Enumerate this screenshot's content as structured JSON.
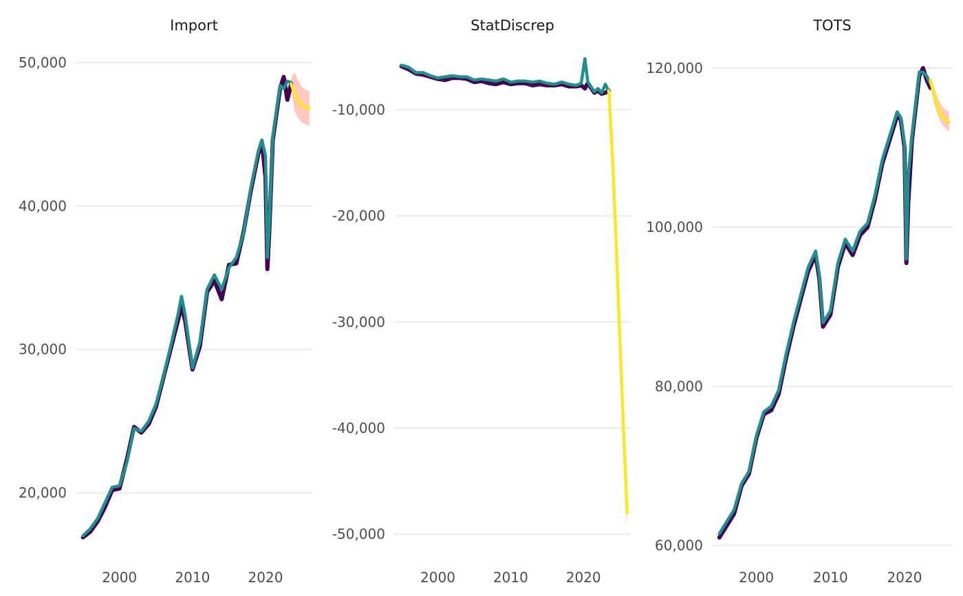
{
  "chart_data": [
    {
      "type": "line",
      "title": "Import",
      "xlabel": "",
      "ylabel": "",
      "xlim": [
        1994,
        2026.5
      ],
      "ylim": [
        15500,
        51000
      ],
      "x_ticks": [
        2000,
        2010,
        2020
      ],
      "x_tick_labels": [
        "2000",
        "2010",
        "2020"
      ],
      "y_ticks": [
        20000,
        30000,
        40000,
        50000
      ],
      "y_tick_labels": [
        "20,000",
        "30,000",
        "40,000",
        "50,000"
      ],
      "grid": true,
      "colors": {
        "actual": "#440154",
        "fitted": "#21908C",
        "forecast": "#FDE725",
        "interval": "#FF9A8A"
      },
      "series": [
        {
          "role": "actual",
          "x": [
            1995,
            1996,
            1997,
            1998,
            1999,
            2000,
            2001,
            2002,
            2003,
            2004,
            2005,
            2006,
            2007,
            2008,
            2008.5,
            2009,
            2010,
            2011,
            2012,
            2013,
            2014,
            2015,
            2016,
            2017,
            2018,
            2019,
            2019.5,
            2020,
            2020.25,
            2020.5,
            2021,
            2022,
            2022.5,
            2023,
            2023.5
          ],
          "values": [
            16900,
            17300,
            18000,
            19000,
            20200,
            20300,
            22300,
            24600,
            24200,
            24800,
            26000,
            28000,
            30000,
            32000,
            33000,
            32000,
            28600,
            30200,
            34000,
            34800,
            33500,
            35900,
            36000,
            38200,
            41100,
            43600,
            44500,
            42000,
            35600,
            38000,
            44600,
            48200,
            49000,
            47400,
            48500
          ]
        },
        {
          "role": "fitted",
          "x": [
            1995,
            1996,
            1997,
            1998,
            1999,
            2000,
            2001,
            2002,
            2003,
            2004,
            2005,
            2006,
            2007,
            2008,
            2008.5,
            2009,
            2010,
            2011,
            2012,
            2013,
            2014,
            2015,
            2016,
            2017,
            2018,
            2019,
            2019.5,
            2020,
            2020.25,
            2020.5,
            2021,
            2022,
            2022.5,
            2023,
            2023.5
          ],
          "values": [
            17000,
            17500,
            18200,
            19300,
            20400,
            20500,
            22100,
            24500,
            24300,
            25000,
            26200,
            28100,
            30200,
            32400,
            33700,
            32400,
            28700,
            30500,
            34200,
            35200,
            34200,
            35700,
            36400,
            38100,
            41300,
            43800,
            44600,
            43500,
            36400,
            38500,
            44800,
            48400,
            48200,
            48700,
            48600
          ]
        },
        {
          "role": "forecast",
          "x": [
            2023.5,
            2024,
            2024.5,
            2025,
            2025.5,
            2026
          ],
          "values": [
            48500,
            47800,
            47300,
            47000,
            46900,
            46800
          ]
        }
      ],
      "interval": {
        "x": [
          2023.5,
          2024,
          2024.5,
          2025,
          2025.5,
          2026
        ],
        "lower": [
          48100,
          46600,
          46100,
          45800,
          45700,
          45600
        ],
        "upper": [
          48900,
          49300,
          48700,
          48300,
          48100,
          48000
        ]
      }
    },
    {
      "type": "line",
      "title": "StatDiscrep",
      "xlabel": "",
      "ylabel": "",
      "xlim": [
        1994,
        2026.5
      ],
      "ylim": [
        -52200,
        -4200
      ],
      "x_ticks": [
        2000,
        2010,
        2020
      ],
      "x_tick_labels": [
        "2000",
        "2010",
        "2020"
      ],
      "y_ticks": [
        -50000,
        -40000,
        -30000,
        -20000,
        -10000
      ],
      "y_tick_labels": [
        "-50,000",
        "-40,000",
        "-30,000",
        "-20,000",
        "-10,000"
      ],
      "grid": true,
      "colors": {
        "actual": "#440154",
        "fitted": "#21908C",
        "forecast": "#FDE725",
        "interval": "#FF9A8A"
      },
      "series": [
        {
          "role": "actual",
          "x": [
            1995,
            1996,
            1997,
            1998,
            1999,
            2000,
            2001,
            2002,
            2003,
            2004,
            2005,
            2006,
            2007,
            2008,
            2009,
            2010,
            2011,
            2012,
            2013,
            2014,
            2015,
            2016,
            2017,
            2018,
            2019,
            2019.7,
            2020.2,
            2020.6,
            2021,
            2021.5,
            2022,
            2022.5,
            2023,
            2023.5
          ],
          "values": [
            -5900,
            -6200,
            -6600,
            -6700,
            -6900,
            -7100,
            -7200,
            -7000,
            -7000,
            -7100,
            -7400,
            -7300,
            -7500,
            -7600,
            -7400,
            -7600,
            -7500,
            -7500,
            -7700,
            -7600,
            -7700,
            -7700,
            -7600,
            -7800,
            -7800,
            -7700,
            -8000,
            -7500,
            -7900,
            -8400,
            -8200,
            -8500,
            -8400,
            -8200
          ]
        },
        {
          "role": "fitted",
          "x": [
            1995,
            1996,
            1997,
            1998,
            1999,
            2000,
            2001,
            2002,
            2003,
            2004,
            2005,
            2006,
            2007,
            2008,
            2009,
            2010,
            2011,
            2012,
            2013,
            2014,
            2015,
            2016,
            2017,
            2018,
            2019,
            2019.7,
            2020.2,
            2020.6,
            2021,
            2021.5,
            2022,
            2022.5,
            2023,
            2023.5
          ],
          "values": [
            -5800,
            -6000,
            -6500,
            -6500,
            -6800,
            -7000,
            -6900,
            -6800,
            -6900,
            -6900,
            -7200,
            -7100,
            -7200,
            -7300,
            -7100,
            -7400,
            -7300,
            -7300,
            -7400,
            -7300,
            -7500,
            -7600,
            -7400,
            -7600,
            -7700,
            -7500,
            -5200,
            -7400,
            -7800,
            -8300,
            -8000,
            -8400,
            -7600,
            -8300
          ]
        },
        {
          "role": "forecast",
          "x": [
            2023.5,
            2024,
            2024.5,
            2025,
            2025.5,
            2026
          ],
          "values": [
            -8200,
            -14500,
            -22500,
            -31500,
            -40000,
            -48000
          ]
        }
      ],
      "interval": {
        "x": [
          2025.9,
          2026
        ],
        "lower": [
          -48500,
          -49000
        ],
        "upper": [
          -47500,
          -47200
        ]
      }
    },
    {
      "type": "line",
      "title": "TOTS",
      "xlabel": "",
      "ylabel": "",
      "xlim": [
        1994,
        2026.5
      ],
      "ylim": [
        58500,
        122500
      ],
      "x_ticks": [
        2000,
        2010,
        2020
      ],
      "x_tick_labels": [
        "2000",
        "2010",
        "2020"
      ],
      "y_ticks": [
        60000,
        80000,
        100000,
        120000
      ],
      "y_tick_labels": [
        "60,000",
        "80,000",
        "100,000",
        "120,000"
      ],
      "grid": true,
      "colors": {
        "actual": "#440154",
        "fitted": "#21908C",
        "forecast": "#FDE725",
        "interval": "#FF9A8A"
      },
      "series": [
        {
          "role": "actual",
          "x": [
            1995,
            1996,
            1997,
            1998,
            1999,
            2000,
            2001,
            2002,
            2003,
            2004,
            2005,
            2006,
            2007,
            2008,
            2008.5,
            2009,
            2010,
            2011,
            2012,
            2013,
            2014,
            2015,
            2016,
            2017,
            2018,
            2019,
            2019.5,
            2020,
            2020.25,
            2020.5,
            2021,
            2022,
            2022.5,
            2023,
            2023.5
          ],
          "values": [
            61000,
            62500,
            64000,
            67500,
            69000,
            73500,
            76500,
            77000,
            79000,
            83500,
            87500,
            91000,
            94500,
            96500,
            93500,
            87500,
            89000,
            95000,
            98000,
            96500,
            99000,
            100000,
            103500,
            108000,
            111000,
            114000,
            113500,
            110000,
            95500,
            103000,
            111000,
            119000,
            120000,
            118500,
            117500
          ]
        },
        {
          "role": "fitted",
          "x": [
            1995,
            1996,
            1997,
            1998,
            1999,
            2000,
            2001,
            2002,
            2003,
            2004,
            2005,
            2006,
            2007,
            2008,
            2008.5,
            2009,
            2010,
            2011,
            2012,
            2013,
            2014,
            2015,
            2016,
            2017,
            2018,
            2019,
            2019.5,
            2020,
            2020.25,
            2020.5,
            2021,
            2022,
            2022.5,
            2023,
            2023.5
          ],
          "values": [
            61500,
            63000,
            64500,
            67800,
            69300,
            73800,
            76800,
            77500,
            79500,
            84000,
            88000,
            91500,
            95000,
            97000,
            94000,
            88000,
            89500,
            95500,
            98500,
            97000,
            99500,
            100500,
            104000,
            108500,
            111500,
            114500,
            113800,
            110500,
            96000,
            106500,
            111500,
            119500,
            119500,
            119000,
            118000
          ]
        },
        {
          "role": "forecast",
          "x": [
            2023.5,
            2024,
            2024.5,
            2025,
            2025.5,
            2026
          ],
          "values": [
            118500,
            116500,
            115000,
            114000,
            113500,
            113200
          ]
        }
      ],
      "interval": {
        "x": [
          2023.5,
          2024,
          2024.5,
          2025,
          2025.5,
          2026
        ],
        "lower": [
          118000,
          115500,
          114000,
          113000,
          112500,
          112000
        ],
        "upper": [
          119000,
          117500,
          116200,
          115300,
          114800,
          114500
        ]
      }
    }
  ]
}
